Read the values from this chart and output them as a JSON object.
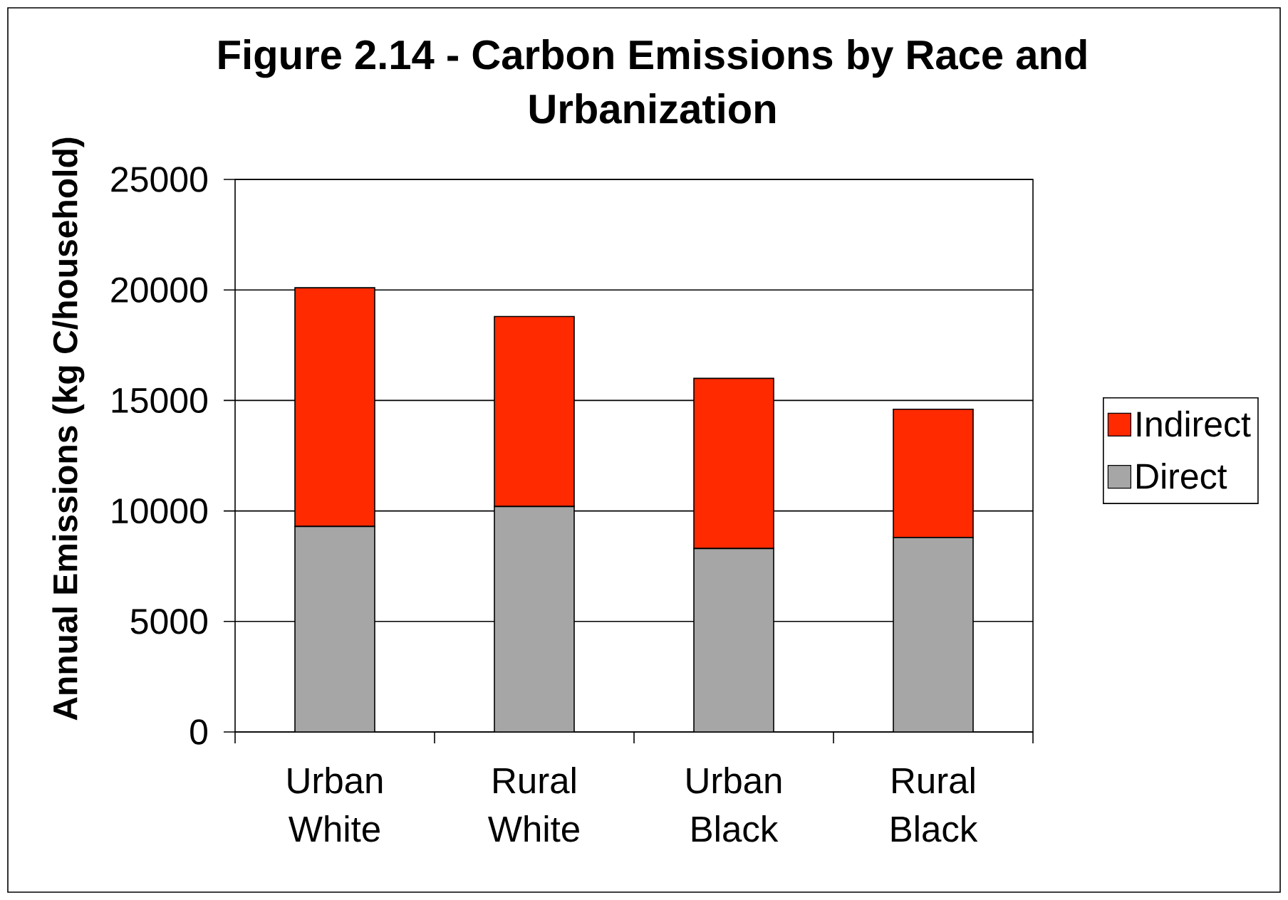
{
  "chart_data": {
    "type": "bar",
    "stacked": true,
    "title": "Figure 2.14 - Carbon Emissions by Race and Urbanization",
    "ylabel": "Annual Emissions (kg C/household)",
    "categories": [
      "Urban White",
      "Rural White",
      "Urban Black",
      "Rural Black"
    ],
    "series": [
      {
        "name": "Direct",
        "color": "#a6a6a6",
        "values": [
          9300,
          10200,
          8300,
          8800
        ]
      },
      {
        "name": "Indirect",
        "color": "#ff2a00",
        "values": [
          10800,
          8600,
          7700,
          5800
        ]
      }
    ],
    "ylim": [
      0,
      25000
    ],
    "yticks": [
      0,
      5000,
      10000,
      15000,
      20000,
      25000
    ],
    "grid": "y",
    "legend": "right"
  }
}
